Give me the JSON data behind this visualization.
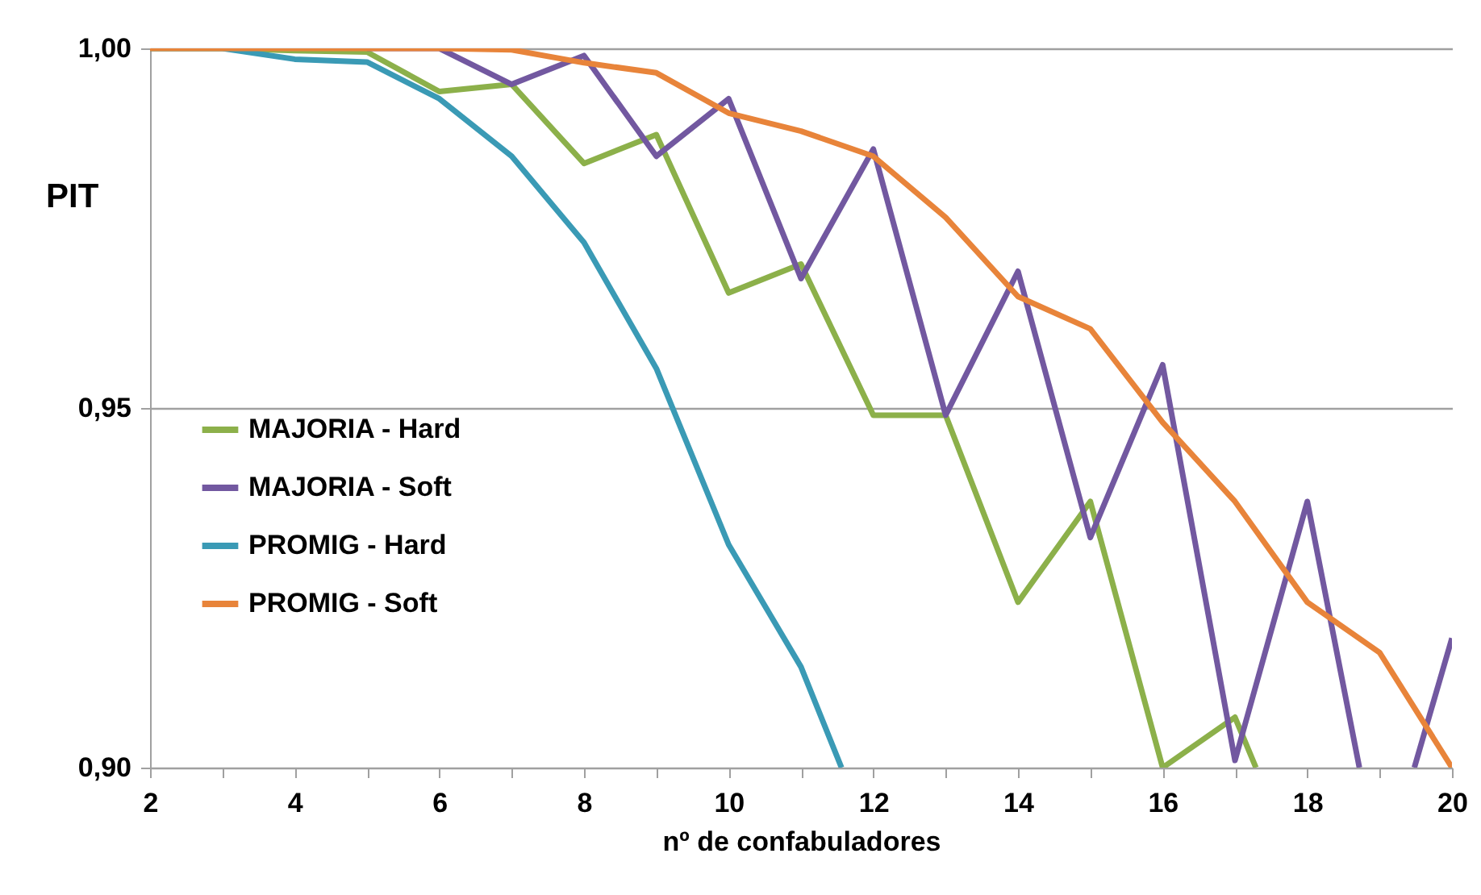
{
  "chart_data": {
    "type": "line",
    "xlabel": "nº de confabuladores",
    "ylabel": "PIT",
    "xlim": [
      2,
      20
    ],
    "xticks": [
      2,
      {
        "value": 3,
        "label": null
      },
      4,
      {
        "value": 5,
        "label": null
      },
      6,
      {
        "value": 7,
        "label": null
      },
      8,
      {
        "value": 9,
        "label": null
      },
      10,
      {
        "value": 11,
        "label": null
      },
      12,
      {
        "value": 13,
        "label": null
      },
      14,
      {
        "value": 15,
        "label": null
      },
      16,
      {
        "value": 17,
        "label": null
      },
      18,
      {
        "value": 19,
        "label": null
      },
      20
    ],
    "ylim": [
      0.9,
      1.0
    ],
    "yticks": [
      {
        "value": 0.9,
        "label": "0,90"
      },
      {
        "value": 0.95,
        "label": "0,95"
      },
      {
        "value": 1.0,
        "label": "1,00"
      }
    ],
    "grid": "y",
    "legend": "left",
    "marker": "none",
    "line_style": "solid",
    "series": [
      {
        "name": "MAJORIA - Hard",
        "color": "#8cb04a",
        "x": [
          2,
          3,
          4,
          5,
          6,
          7,
          8,
          9,
          10,
          11,
          12,
          13,
          14,
          15,
          16,
          17,
          17.29
        ],
        "values": [
          1.0,
          1.0,
          0.9997,
          0.9995,
          0.994,
          0.995,
          0.984,
          0.988,
          0.966,
          0.97,
          0.949,
          0.949,
          0.923,
          0.937,
          0.9,
          0.907,
          0.9
        ]
      },
      {
        "name": "MAJORIA - Soft",
        "color": "#7258a0",
        "x": [
          5,
          6,
          7,
          8,
          9,
          10,
          11,
          12,
          13,
          14,
          15,
          16,
          17,
          18,
          18.72,
          19,
          19.48,
          20
        ],
        "values": [
          1.0,
          1.0,
          0.995,
          0.999,
          0.985,
          0.993,
          0.968,
          0.986,
          0.949,
          0.969,
          0.932,
          0.956,
          0.901,
          0.937,
          0.9,
          null,
          0.9,
          0.918
        ]
      },
      {
        "name": "PROMIG - Hard",
        "color": "#3a9ab5",
        "x": [
          2,
          3,
          4,
          5,
          6,
          7,
          8,
          9,
          10,
          11,
          11.56
        ],
        "values": [
          1.0,
          1.0,
          0.9985,
          0.9981,
          0.993,
          0.985,
          0.973,
          0.9555,
          0.931,
          0.914,
          0.9
        ]
      },
      {
        "name": "PROMIG - Soft",
        "color": "#e8843a",
        "x": [
          2,
          3,
          4,
          5,
          6,
          7,
          8,
          9,
          10,
          11,
          12,
          13,
          14,
          15,
          16,
          17,
          18,
          19,
          20
        ],
        "values": [
          1.0,
          1.0,
          1.0,
          1.0,
          1.0,
          0.9998,
          0.998,
          0.9966,
          0.991,
          0.9885,
          0.985,
          0.9765,
          0.9655,
          0.961,
          0.948,
          0.937,
          0.923,
          0.916,
          0.9
        ]
      }
    ]
  }
}
